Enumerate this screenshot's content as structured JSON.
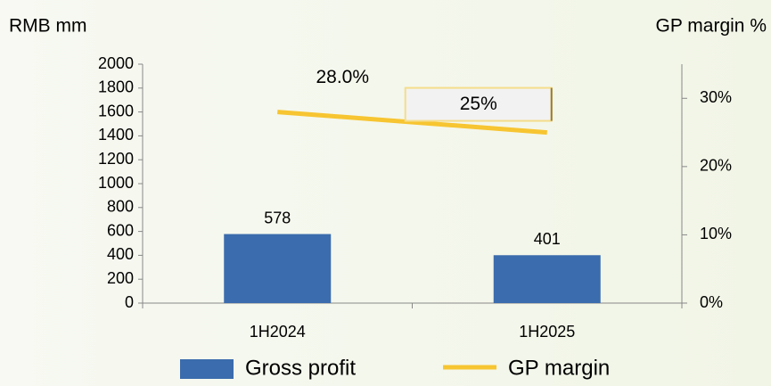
{
  "chart_data": {
    "type": "bar_line",
    "y_label": "RMB mm",
    "y2_label": "GP margin %",
    "categories": [
      "1H2024",
      "1H2025"
    ],
    "series": [
      {
        "name": "Gross profit",
        "type": "bar",
        "color": "#3b6cad",
        "values": [
          578,
          401
        ]
      },
      {
        "name": "GP margin",
        "type": "line",
        "axis": "y2",
        "color": "#f7c531",
        "values": [
          28.0,
          25
        ],
        "value_labels": [
          "28.0%",
          "25%"
        ]
      }
    ],
    "ylim": [
      0,
      2000
    ],
    "yticks": [
      0,
      200,
      400,
      600,
      800,
      1000,
      1200,
      1400,
      1600,
      1800,
      2000
    ],
    "y2lim": [
      0,
      35
    ],
    "y2ticks": [
      {
        "value": 0,
        "label": "0%"
      },
      {
        "value": 10,
        "label": "10%"
      },
      {
        "value": 20,
        "label": "20%"
      },
      {
        "value": 30,
        "label": "30%"
      }
    ],
    "legend": "bottom"
  }
}
